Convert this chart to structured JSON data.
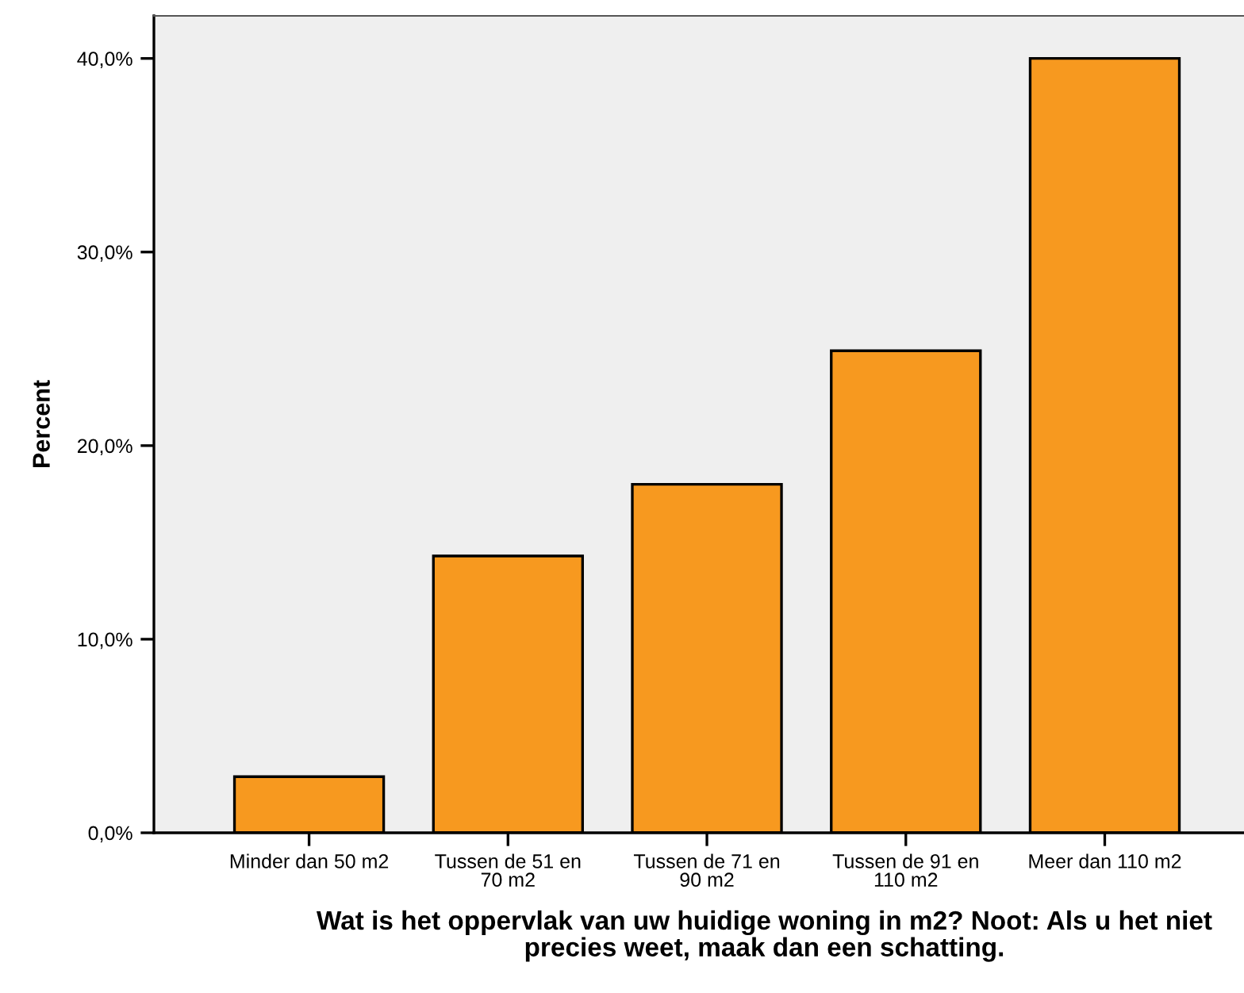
{
  "chart_data": {
    "type": "bar",
    "xlabel": "Wat is het oppervlak van uw huidige woning in m2? Noot: Als u het niet\nprecies weet, maak dan een schatting.",
    "ylabel": "Percent",
    "categories": [
      "Minder dan 50 m2",
      "Tussen de 51 en\n70 m2",
      "Tussen de 71 en\n90 m2",
      "Tussen de 91 en\n110 m2",
      "Meer dan 110 m2"
    ],
    "values": [
      2.9,
      14.3,
      18.0,
      24.9,
      40.0
    ],
    "color": "#f7991f",
    "ylim": [
      0,
      42.2
    ],
    "yticks": [
      {
        "value": 0,
        "label": "0,0%"
      },
      {
        "value": 10,
        "label": "10,0%"
      },
      {
        "value": 20,
        "label": "20,0%"
      },
      {
        "value": 30,
        "label": "30,0%"
      },
      {
        "value": 40,
        "label": "40,0%"
      }
    ],
    "grid": false
  }
}
